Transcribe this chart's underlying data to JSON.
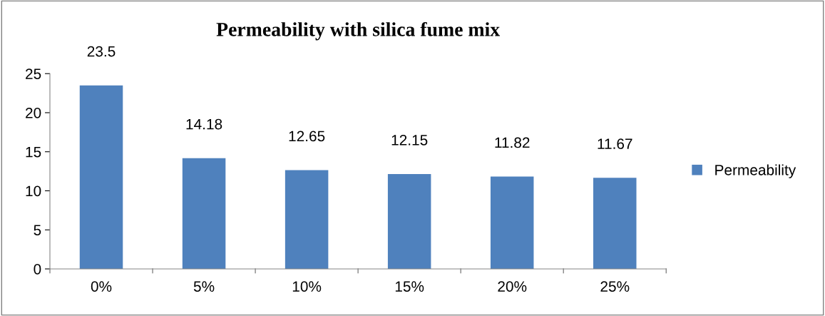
{
  "chart_data": {
    "type": "bar",
    "title": "Permeability with silica fume mix",
    "categories": [
      "0%",
      "5%",
      "10%",
      "15%",
      "20%",
      "25%"
    ],
    "series": [
      {
        "name": "Permeability",
        "color": "#4f81bd",
        "values": [
          23.5,
          14.18,
          12.65,
          12.15,
          11.82,
          11.67
        ]
      }
    ],
    "ylim": [
      0,
      25
    ],
    "yticks": [
      0,
      5,
      10,
      15,
      20,
      25
    ],
    "grid": false,
    "legend": "right",
    "data_labels": true
  }
}
